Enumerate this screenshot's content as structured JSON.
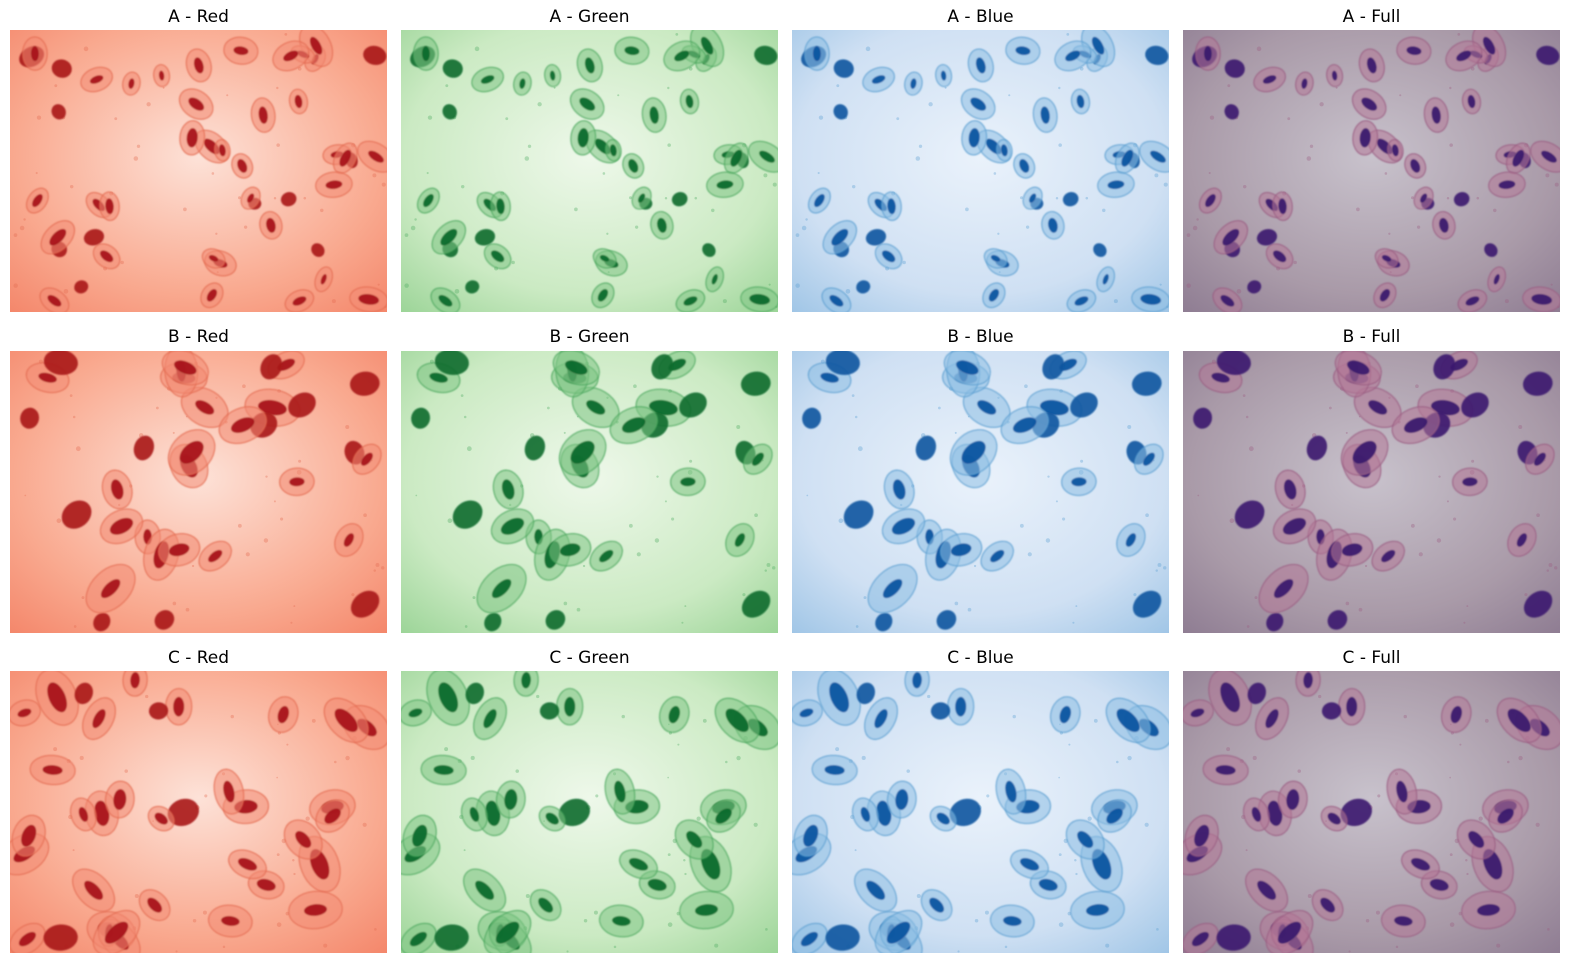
{
  "rows": [
    {
      "panels": [
        {
          "title": "A - Red",
          "channel": "red"
        },
        {
          "title": "A - Green",
          "channel": "green"
        },
        {
          "title": "A - Blue",
          "channel": "blue"
        },
        {
          "title": "A - Full",
          "channel": "full"
        }
      ]
    },
    {
      "panels": [
        {
          "title": "B - Red",
          "channel": "red"
        },
        {
          "title": "B - Green",
          "channel": "green"
        },
        {
          "title": "B - Blue",
          "channel": "blue"
        },
        {
          "title": "B - Full",
          "channel": "full"
        }
      ]
    },
    {
      "panels": [
        {
          "title": "C - Red",
          "channel": "red"
        },
        {
          "title": "C - Green",
          "channel": "green"
        },
        {
          "title": "C - Blue",
          "channel": "blue"
        },
        {
          "title": "C - Full",
          "channel": "full"
        }
      ]
    }
  ],
  "palettes": {
    "red": {
      "bg_light": "#fde2d8",
      "bg": "#f9a98f",
      "bg_dark": "#f4866a",
      "cell": "#f28b73",
      "rim": "#e36a50",
      "nucleus": "#a8141a"
    },
    "green": {
      "bg_light": "#eef8ea",
      "bg": "#cbeac3",
      "bg_dark": "#9bd497",
      "cell": "#7ec484",
      "rim": "#4aa85e",
      "nucleus": "#0b6b2c"
    },
    "blue": {
      "bg_light": "#eaf2fb",
      "bg": "#cfe0f3",
      "bg_dark": "#9fc5e6",
      "cell": "#8dbde3",
      "rim": "#5a9fd1",
      "nucleus": "#0d55a0"
    },
    "full": {
      "bg_light": "#c8c2cc",
      "bg": "#a99aa8",
      "bg_dark": "#8e7c92",
      "cell": "#b27898",
      "rim": "#9a5c82",
      "nucleus": "#3b1a6e"
    }
  }
}
